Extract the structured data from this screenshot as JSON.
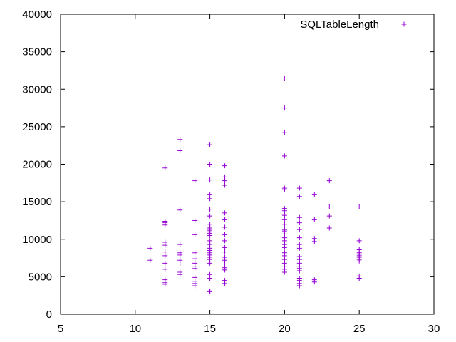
{
  "chart_data": {
    "type": "scatter",
    "title": "",
    "xlabel": "",
    "ylabel": "",
    "xlim": [
      5,
      30
    ],
    "ylim": [
      0,
      40000
    ],
    "x_ticks": [
      5,
      10,
      15,
      20,
      25,
      30
    ],
    "y_ticks": [
      0,
      5000,
      10000,
      15000,
      20000,
      25000,
      30000,
      35000,
      40000
    ],
    "grid": false,
    "legend_position": "top-right",
    "marker": "plus",
    "series": [
      {
        "name": "SQLTableLength",
        "color": "#9400d3",
        "points": [
          [
            11,
            8800
          ],
          [
            11,
            7200
          ],
          [
            12,
            19500
          ],
          [
            12,
            12400
          ],
          [
            12,
            12200
          ],
          [
            12,
            11900
          ],
          [
            12,
            9600
          ],
          [
            12,
            9200
          ],
          [
            12,
            8300
          ],
          [
            12,
            7800
          ],
          [
            12,
            6800
          ],
          [
            12,
            6000
          ],
          [
            12,
            4600
          ],
          [
            12,
            4200
          ],
          [
            12,
            4000
          ],
          [
            13,
            23300
          ],
          [
            13,
            21800
          ],
          [
            13,
            13900
          ],
          [
            13,
            9300
          ],
          [
            13,
            8200
          ],
          [
            13,
            7900
          ],
          [
            13,
            7200
          ],
          [
            13,
            6700
          ],
          [
            13,
            5600
          ],
          [
            13,
            5300
          ],
          [
            14,
            17800
          ],
          [
            14,
            12500
          ],
          [
            14,
            10600
          ],
          [
            14,
            8200
          ],
          [
            14,
            7400
          ],
          [
            14,
            6800
          ],
          [
            14,
            6400
          ],
          [
            14,
            6100
          ],
          [
            14,
            4900
          ],
          [
            14,
            4400
          ],
          [
            14,
            4100
          ],
          [
            14,
            3800
          ],
          [
            15,
            22600
          ],
          [
            15,
            20000
          ],
          [
            15,
            17900
          ],
          [
            15,
            16000
          ],
          [
            15,
            15400
          ],
          [
            15,
            14000
          ],
          [
            15,
            13100
          ],
          [
            15,
            12000
          ],
          [
            15,
            11500
          ],
          [
            15,
            11200
          ],
          [
            15,
            11000
          ],
          [
            15,
            10800
          ],
          [
            15,
            10500
          ],
          [
            15,
            9800
          ],
          [
            15,
            9300
          ],
          [
            15,
            8800
          ],
          [
            15,
            8500
          ],
          [
            15,
            8200
          ],
          [
            15,
            7900
          ],
          [
            15,
            7600
          ],
          [
            15,
            7300
          ],
          [
            15,
            6800
          ],
          [
            15,
            5300
          ],
          [
            15,
            4800
          ],
          [
            15,
            3100
          ],
          [
            15,
            3000
          ],
          [
            16,
            19800
          ],
          [
            16,
            18300
          ],
          [
            16,
            17800
          ],
          [
            16,
            17200
          ],
          [
            16,
            13500
          ],
          [
            16,
            12600
          ],
          [
            16,
            11600
          ],
          [
            16,
            10600
          ],
          [
            16,
            9800
          ],
          [
            16,
            8900
          ],
          [
            16,
            8300
          ],
          [
            16,
            7600
          ],
          [
            16,
            7200
          ],
          [
            16,
            6700
          ],
          [
            16,
            6200
          ],
          [
            16,
            5900
          ],
          [
            16,
            4500
          ],
          [
            16,
            4100
          ],
          [
            20,
            31500
          ],
          [
            20,
            27500
          ],
          [
            20,
            24200
          ],
          [
            20,
            21100
          ],
          [
            20,
            16800
          ],
          [
            20,
            16600
          ],
          [
            20,
            14100
          ],
          [
            20,
            13800
          ],
          [
            20,
            13200
          ],
          [
            20,
            12600
          ],
          [
            20,
            12000
          ],
          [
            20,
            11300
          ],
          [
            20,
            11100
          ],
          [
            20,
            10700
          ],
          [
            20,
            10200
          ],
          [
            20,
            9800
          ],
          [
            20,
            9300
          ],
          [
            20,
            8900
          ],
          [
            20,
            8200
          ],
          [
            20,
            7800
          ],
          [
            20,
            7300
          ],
          [
            20,
            6800
          ],
          [
            20,
            6400
          ],
          [
            20,
            6000
          ],
          [
            20,
            5600
          ],
          [
            21,
            16800
          ],
          [
            21,
            15700
          ],
          [
            21,
            12900
          ],
          [
            21,
            12200
          ],
          [
            21,
            11300
          ],
          [
            21,
            10200
          ],
          [
            21,
            9300
          ],
          [
            21,
            8800
          ],
          [
            21,
            7700
          ],
          [
            21,
            7300
          ],
          [
            21,
            6800
          ],
          [
            21,
            6400
          ],
          [
            21,
            6100
          ],
          [
            21,
            5800
          ],
          [
            21,
            4800
          ],
          [
            21,
            4500
          ],
          [
            21,
            4100
          ],
          [
            21,
            3800
          ],
          [
            22,
            16000
          ],
          [
            22,
            12600
          ],
          [
            22,
            10100
          ],
          [
            22,
            9700
          ],
          [
            22,
            4600
          ],
          [
            22,
            4300
          ],
          [
            23,
            17800
          ],
          [
            23,
            14300
          ],
          [
            23,
            13100
          ],
          [
            23,
            11500
          ],
          [
            25,
            14300
          ],
          [
            25,
            9800
          ],
          [
            25,
            8600
          ],
          [
            25,
            8200
          ],
          [
            25,
            8000
          ],
          [
            25,
            7800
          ],
          [
            25,
            7600
          ],
          [
            25,
            7300
          ],
          [
            25,
            7100
          ],
          [
            25,
            5100
          ],
          [
            25,
            4800
          ]
        ]
      }
    ]
  }
}
